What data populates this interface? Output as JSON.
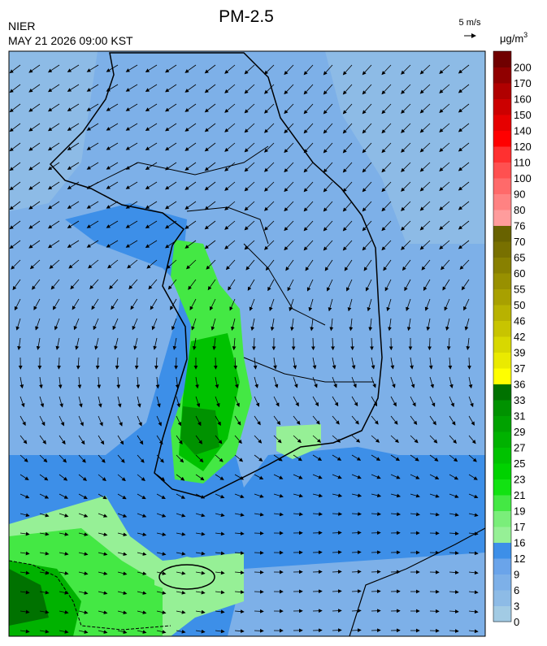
{
  "header": {
    "title": "PM-2.5",
    "agency": "NIER",
    "datetime": "MAY 21 2026 09:00 KST",
    "wind_scale": "5 m/s",
    "unit": "μg/m",
    "unit_power": "3"
  },
  "colorbar": [
    {
      "label": "0",
      "color": "#a2cbe4"
    },
    {
      "label": "3",
      "color": "#8dbbe6"
    },
    {
      "label": "6",
      "color": "#7db0e8"
    },
    {
      "label": "9",
      "color": "#6aa4ea"
    },
    {
      "label": "12",
      "color": "#3d8fe8"
    },
    {
      "label": "16",
      "color": "#96f096"
    },
    {
      "label": "17",
      "color": "#7aee7a"
    },
    {
      "label": "19",
      "color": "#44e844"
    },
    {
      "label": "21",
      "color": "#12e212"
    },
    {
      "label": "23",
      "color": "#00d200"
    },
    {
      "label": "25",
      "color": "#00c200"
    },
    {
      "label": "27",
      "color": "#00b200"
    },
    {
      "label": "29",
      "color": "#00a200"
    },
    {
      "label": "31",
      "color": "#009200"
    },
    {
      "label": "33",
      "color": "#007200"
    },
    {
      "label": "36",
      "color": "#ffff00"
    },
    {
      "label": "37",
      "color": "#eaea00"
    },
    {
      "label": "39",
      "color": "#d8d800"
    },
    {
      "label": "42",
      "color": "#c8c400"
    },
    {
      "label": "46",
      "color": "#b8b200"
    },
    {
      "label": "50",
      "color": "#a8a000"
    },
    {
      "label": "55",
      "color": "#989000"
    },
    {
      "label": "60",
      "color": "#888000"
    },
    {
      "label": "65",
      "color": "#787000"
    },
    {
      "label": "70",
      "color": "#686200"
    },
    {
      "label": "76",
      "color": "#ff9c9c"
    },
    {
      "label": "80",
      "color": "#ff8282"
    },
    {
      "label": "90",
      "color": "#ff6a6a"
    },
    {
      "label": "100",
      "color": "#ff5050"
    },
    {
      "label": "110",
      "color": "#ff3030"
    },
    {
      "label": "120",
      "color": "#ff0000"
    },
    {
      "label": "140",
      "color": "#e60000"
    },
    {
      "label": "150",
      "color": "#cc0000"
    },
    {
      "label": "160",
      "color": "#b00000"
    },
    {
      "label": "170",
      "color": "#900000"
    },
    {
      "label": "200",
      "color": "#700000"
    }
  ]
}
